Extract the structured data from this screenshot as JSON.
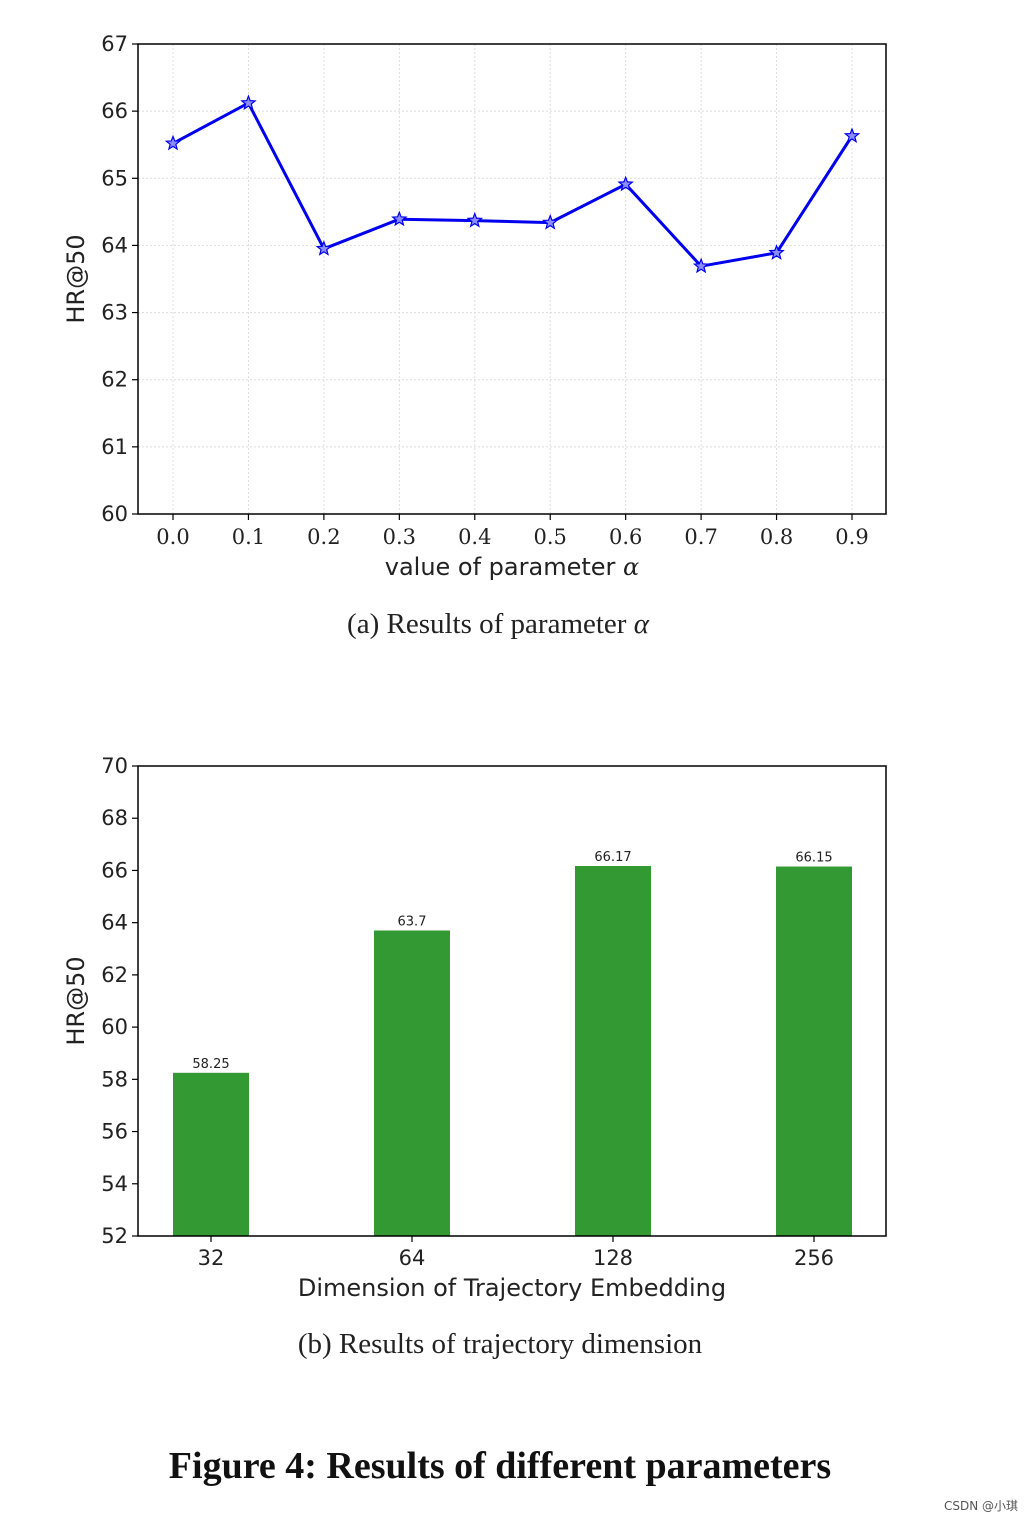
{
  "chart_data": [
    {
      "type": "line",
      "x": [
        0.0,
        0.1,
        0.2,
        0.3,
        0.4,
        0.5,
        0.6,
        0.7,
        0.8,
        0.9
      ],
      "x_tick_labels": [
        "0.0",
        "0.1",
        "0.2",
        "0.3",
        "0.4",
        "0.5",
        "0.6",
        "0.7",
        "0.8",
        "0.9"
      ],
      "series": [
        {
          "values": [
            65.52,
            66.12,
            63.95,
            64.39,
            64.37,
            64.34,
            64.91,
            63.69,
            63.89,
            65.63
          ],
          "color": "#0000ee",
          "marker": "star"
        }
      ],
      "xlabel": "value of parameter",
      "xlabel_symbol": "α",
      "ylabel": "HR@50",
      "ylim": [
        60,
        67
      ],
      "y_ticks": [
        "60",
        "61",
        "62",
        "63",
        "64",
        "65",
        "66",
        "67"
      ],
      "grid": true,
      "caption_prefix": "(a)",
      "caption": "Results of parameter",
      "caption_symbol": "α"
    },
    {
      "type": "bar",
      "categories": [
        "32",
        "64",
        "128",
        "256"
      ],
      "values": [
        58.25,
        63.7,
        66.17,
        66.15
      ],
      "value_labels": [
        "58.25",
        "63.7",
        "66.17",
        "66.15"
      ],
      "color": "#339933",
      "xlabel": "Dimension of Trajectory Embedding",
      "ylabel": "HR@50",
      "ylim": [
        52,
        70
      ],
      "y_ticks": [
        "52",
        "54",
        "56",
        "58",
        "60",
        "62",
        "64",
        "66",
        "68",
        "70"
      ],
      "grid": false,
      "caption_prefix": "(b)",
      "caption": "Results of trajectory dimension"
    }
  ],
  "figure_title": "Figure 4: Results of different parameters",
  "watermark": "CSDN @小琪"
}
